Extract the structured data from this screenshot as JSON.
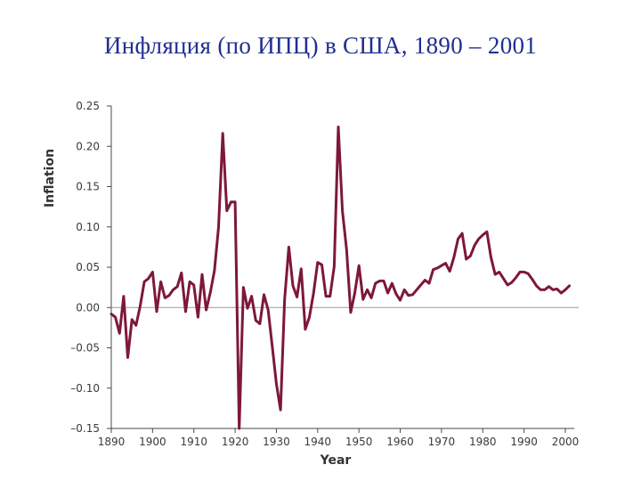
{
  "title": "Инфляция (по ИПЦ) в США, 1890 – 2001",
  "colors": {
    "series": "#7d1838",
    "axis": "#4a4a4a",
    "zero_line": "#9a9a9a",
    "title": "#1f2f8f"
  },
  "chart_data": {
    "type": "line",
    "xlabel": "Year",
    "ylabel": "Inflation",
    "xlim": [
      1890,
      2000
    ],
    "ylim": [
      -0.15,
      0.25
    ],
    "x_ticks": [
      1890,
      1900,
      1910,
      1920,
      1930,
      1940,
      1950,
      1960,
      1970,
      1980,
      1990,
      2000
    ],
    "x_tick_labels": [
      "1890",
      "1900",
      "1910",
      "1920",
      "1930",
      "1940",
      "1950",
      "1960",
      "1970",
      "1980",
      "1990",
      "2000"
    ],
    "y_ticks": [
      -0.15,
      -0.1,
      -0.05,
      0,
      0.05,
      0.1,
      0.15,
      0.2,
      0.25
    ],
    "y_tick_labels": [
      "–0.15",
      "–0.10",
      "–0.05",
      "0.00",
      "0.05",
      "0.10",
      "0.15",
      "0.20",
      "0.25"
    ],
    "grid": false,
    "zero_line": true,
    "series": [
      {
        "x": [
          1890,
          1891,
          1892,
          1893,
          1894,
          1895,
          1896,
          1897,
          1898,
          1899,
          1900,
          1901,
          1902,
          1903,
          1904,
          1905,
          1906,
          1907,
          1908,
          1909,
          1910,
          1911,
          1912,
          1913,
          1914,
          1915,
          1916,
          1917,
          1918,
          1919,
          1920,
          1921,
          1922,
          1923,
          1924,
          1925,
          1926,
          1927,
          1928,
          1929,
          1930,
          1931,
          1932,
          1933,
          1934,
          1935,
          1936,
          1937,
          1938,
          1939,
          1940,
          1941,
          1942,
          1943,
          1944,
          1945,
          1946,
          1947,
          1948,
          1949,
          1950,
          1951,
          1952,
          1953,
          1954,
          1955,
          1956,
          1957,
          1958,
          1959,
          1960,
          1961,
          1962,
          1963,
          1964,
          1965,
          1966,
          1967,
          1968,
          1969,
          1970,
          1971,
          1972,
          1973,
          1974,
          1975,
          1976,
          1977,
          1978,
          1979,
          1980,
          1981,
          1982,
          1983,
          1984,
          1985,
          1986,
          1987,
          1988,
          1989,
          1990,
          1991,
          1992,
          1993,
          1994,
          1995,
          1996,
          1997,
          1998,
          1999,
          2000,
          2001
        ],
        "values": [
          -0.008,
          -0.012,
          -0.032,
          0.014,
          -0.062,
          -0.015,
          -0.022,
          0.002,
          0.032,
          0.036,
          0.044,
          -0.005,
          0.032,
          0.012,
          0.015,
          0.022,
          0.026,
          0.043,
          -0.005,
          0.032,
          0.028,
          -0.012,
          0.041,
          -0.003,
          0.019,
          0.046,
          0.1,
          0.216,
          0.12,
          0.131,
          0.131,
          -0.15,
          0.025,
          -0.001,
          0.014,
          -0.016,
          -0.02,
          0.016,
          -0.003,
          -0.048,
          -0.095,
          -0.127,
          0.01,
          0.075,
          0.027,
          0.013,
          0.048,
          -0.027,
          -0.012,
          0.018,
          0.056,
          0.053,
          0.014,
          0.014,
          0.051,
          0.224,
          0.12,
          0.072,
          -0.006,
          0.018,
          0.052,
          0.01,
          0.022,
          0.012,
          0.03,
          0.033,
          0.033,
          0.018,
          0.03,
          0.017,
          0.009,
          0.022,
          0.015,
          0.016,
          0.022,
          0.028,
          0.034,
          0.03,
          0.047,
          0.049,
          0.052,
          0.055,
          0.045,
          0.062,
          0.085,
          0.092,
          0.06,
          0.064,
          0.077,
          0.085,
          0.09,
          0.094,
          0.062,
          0.041,
          0.044,
          0.036,
          0.028,
          0.031,
          0.037,
          0.044,
          0.044,
          0.042,
          0.035,
          0.027,
          0.022,
          0.022,
          0.026,
          0.022,
          0.023,
          0.018,
          0.022,
          0.027
        ]
      }
    ]
  }
}
